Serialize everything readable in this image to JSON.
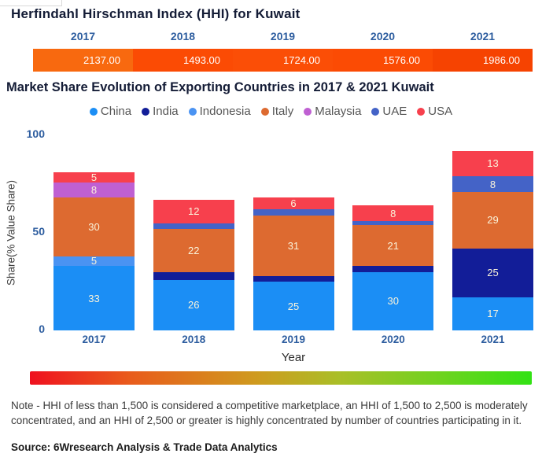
{
  "hhi_section": {
    "title": "Herfindahl Hirschman Index (HHI) for Kuwait",
    "years": [
      "2017",
      "2018",
      "2019",
      "2020",
      "2021"
    ],
    "values": [
      "2137.00",
      "1493.00",
      "1724.00",
      "1576.00",
      "1986.00"
    ],
    "segment_colors": [
      "#f8690f",
      "#fb4b04",
      "#fb4e06",
      "#fb4b04",
      "#f64301"
    ]
  },
  "market_section": {
    "title": "Market Share Evolution of Exporting Countries in 2017 & 2021 Kuwait"
  },
  "chart_data": {
    "type": "bar",
    "stacked": true,
    "title": "Market Share Evolution of Exporting Countries in 2017 & 2021 Kuwait",
    "categories": [
      "2017",
      "2018",
      "2019",
      "2020",
      "2021"
    ],
    "series": [
      {
        "name": "China",
        "color": "#1b8ef5",
        "values": [
          33,
          26,
          25,
          30,
          17
        ]
      },
      {
        "name": "India",
        "color": "#121d98",
        "values": [
          0,
          4,
          3,
          3,
          25
        ]
      },
      {
        "name": "Indonesia",
        "color": "#4a93f2",
        "values": [
          5,
          0,
          0,
          0,
          0
        ]
      },
      {
        "name": "Italy",
        "color": "#dd6a30",
        "values": [
          30,
          22,
          31,
          21,
          29
        ]
      },
      {
        "name": "Malaysia",
        "color": "#bf60d2",
        "values": [
          8,
          0,
          0,
          0,
          0
        ]
      },
      {
        "name": "UAE",
        "color": "#4463c7",
        "values": [
          0,
          3,
          3,
          2,
          8
        ]
      },
      {
        "name": "USA",
        "color": "#f7404d",
        "values": [
          5,
          12,
          6,
          8,
          13
        ]
      }
    ],
    "xlabel": "Year",
    "ylabel": "Share(% Value Share)",
    "ylim": [
      0,
      100
    ],
    "yticks": [
      0,
      50,
      100
    ],
    "legend_position": "top",
    "grid": false,
    "label_threshold": 5
  },
  "gradient_scale": {
    "stops": [
      "#ef111f 0%",
      "#e95c1c 20%",
      "#cf9a1e 45%",
      "#a9bf27 62%",
      "#6ed31f 82%",
      "#32e214 100%"
    ]
  },
  "footer": {
    "note": "Note - HHI of less than 1,500 is considered a competitive marketplace, an HHI of 1,500 to 2,500 is moderately concentrated, and an HHI of 2,500 or greater is highly concentrated by number of countries participating in it.",
    "source": "Source: 6Wresearch Analysis & Trade Data Analytics"
  }
}
